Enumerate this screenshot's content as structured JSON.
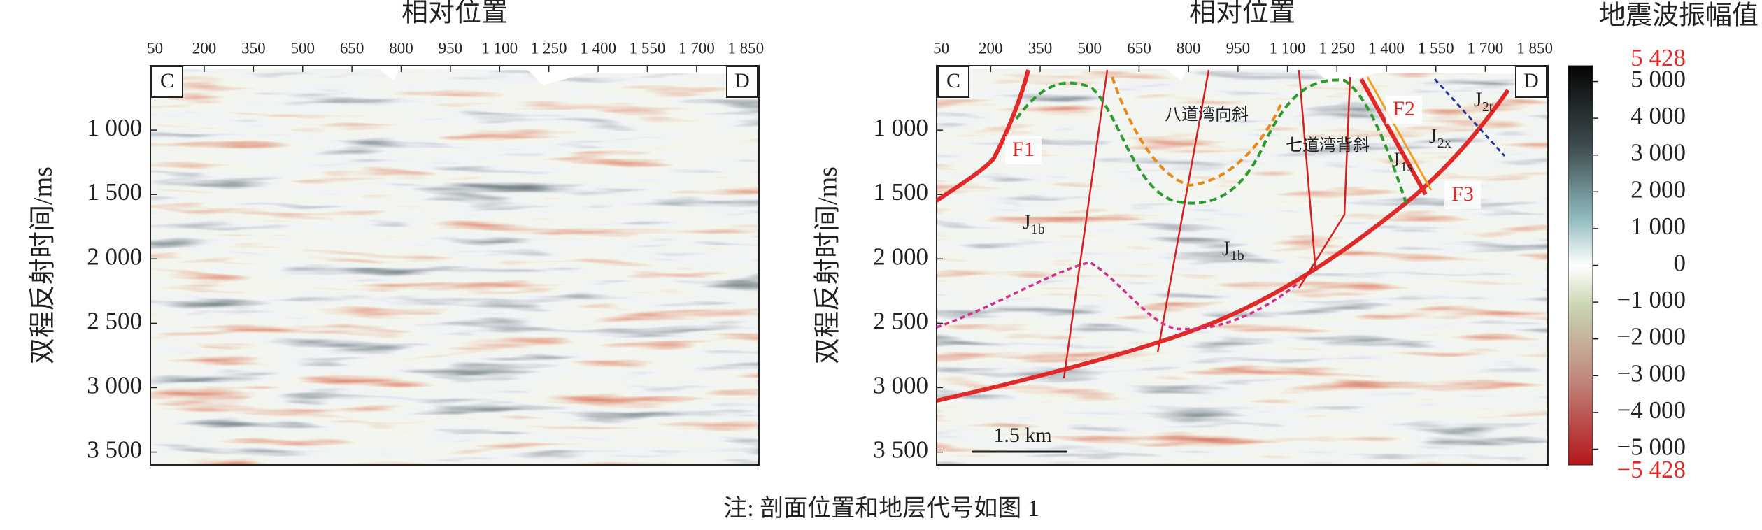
{
  "chart_data": [
    {
      "type": "seismic",
      "x_label": "相对位置",
      "y_label": "双程反射时间/ms",
      "panel_labels": [
        "C",
        "D"
      ],
      "xlim": [
        36,
        1890
      ],
      "xticks": [
        50,
        200,
        350,
        500,
        650,
        800,
        950,
        {
          "value": 1100,
          "label": "1 100"
        },
        {
          "value": 1250,
          "label": "1 250"
        },
        {
          "value": 1400,
          "label": "1 400"
        },
        {
          "value": 1550,
          "label": "1 550"
        },
        {
          "value": 1700,
          "label": "1 700"
        },
        {
          "value": 1850,
          "label": "1 850"
        }
      ],
      "ylim": [
        500,
        3600
      ],
      "y_inverted": true,
      "yticks": [
        {
          "value": 1000,
          "label": "1 000"
        },
        {
          "value": 1500,
          "label": "1 500"
        },
        {
          "value": 2000,
          "label": "2 000"
        },
        {
          "value": 2500,
          "label": "2 500"
        },
        {
          "value": 3000,
          "label": "3 000"
        },
        {
          "value": 3500,
          "label": "3 500"
        }
      ]
    },
    {
      "type": "seismic",
      "x_label": "相对位置",
      "y_label": "双程反射时间/ms",
      "panel_labels": [
        "C",
        "D"
      ],
      "xlim": [
        36,
        1890
      ],
      "xticks": [
        50,
        200,
        350,
        500,
        650,
        800,
        950,
        {
          "value": 1100,
          "label": "1 100"
        },
        {
          "value": 1250,
          "label": "1 250"
        },
        {
          "value": 1400,
          "label": "1 400"
        },
        {
          "value": 1550,
          "label": "1 550"
        },
        {
          "value": 1700,
          "label": "1 700"
        },
        {
          "value": 1850,
          "label": "1 850"
        }
      ],
      "ylim": [
        500,
        3600
      ],
      "y_inverted": true,
      "yticks": [
        {
          "value": 1000,
          "label": "1 000"
        },
        {
          "value": 1500,
          "label": "1 500"
        },
        {
          "value": 2000,
          "label": "2 000"
        },
        {
          "value": 2500,
          "label": "2 500"
        },
        {
          "value": 3000,
          "label": "3 000"
        },
        {
          "value": 3500,
          "label": "3 500"
        }
      ],
      "faults": [
        "F1",
        "F2",
        "F3"
      ],
      "strata": [
        {
          "base": "J",
          "sub": "1b"
        },
        {
          "base": "J",
          "sub": "1b"
        },
        {
          "base": "J",
          "sub": "1s"
        },
        {
          "base": "J",
          "sub": "2x"
        },
        {
          "base": "J",
          "sub": "2t"
        }
      ],
      "structures": [
        "八道湾向斜",
        "七道湾背斜"
      ],
      "scale_bar": "1.5 km"
    }
  ],
  "colorbar": {
    "title": "地震波振幅值",
    "lim": [
      {
        "value": -5428,
        "label": "−5 428"
      },
      {
        "value": 5428,
        "label": "5 428"
      }
    ],
    "limit_color": "#e02a2a",
    "ticks": [
      {
        "value": 5000,
        "label": "5 000"
      },
      {
        "value": 4000,
        "label": "4 000"
      },
      {
        "value": 3000,
        "label": "3 000"
      },
      {
        "value": 2000,
        "label": "2 000"
      },
      {
        "value": 1000,
        "label": "1 000"
      },
      0,
      {
        "value": -1000,
        "label": "−1 000"
      },
      {
        "value": -2000,
        "label": "−2 000"
      },
      {
        "value": -3000,
        "label": "−3 000"
      },
      {
        "value": -4000,
        "label": "−4 000"
      },
      {
        "value": -5000,
        "label": "−5 000"
      }
    ]
  },
  "caption": "注: 剖面位置和地层代号如图 1"
}
